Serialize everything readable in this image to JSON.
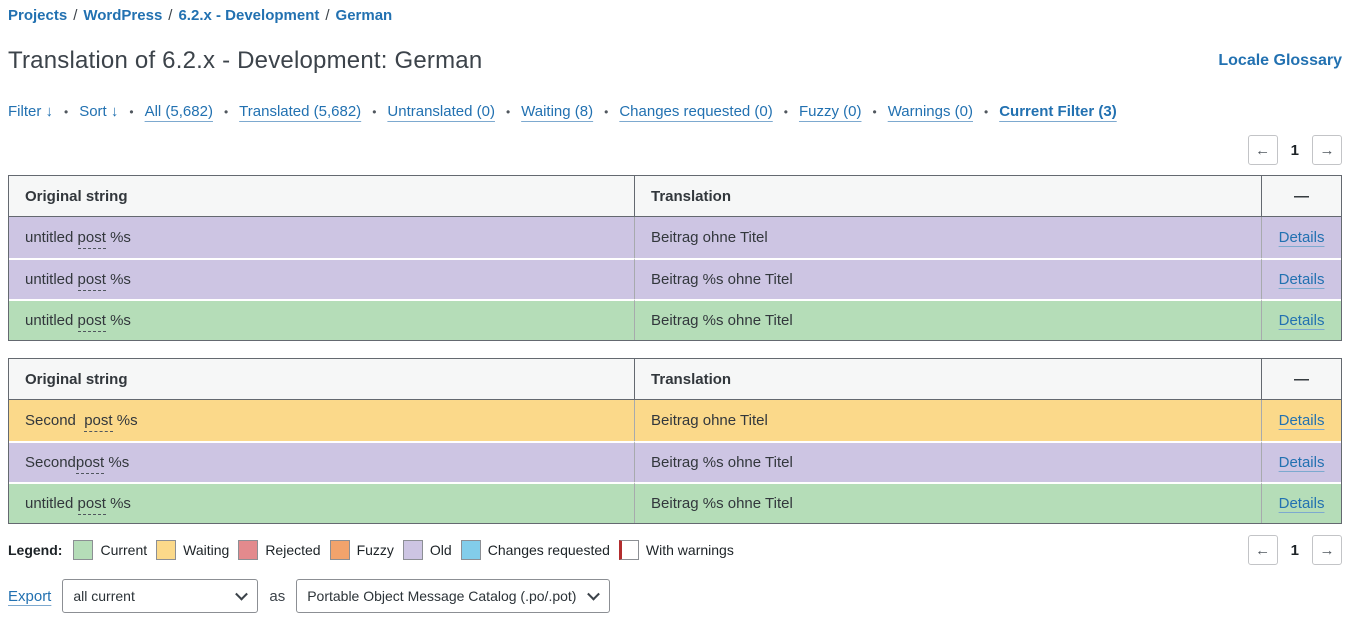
{
  "breadcrumb": {
    "separator": "/",
    "items": [
      "Projects",
      "WordPress",
      "6.2.x - Development",
      "German"
    ]
  },
  "header": {
    "title": "Translation of 6.2.x - Development: German",
    "locale_glossary": "Locale Glossary"
  },
  "filter_bar": {
    "filter": "Filter ↓",
    "sort": "Sort ↓",
    "bullet": "•",
    "links": [
      "All (5,682)",
      "Translated (5,682)",
      "Untranslated (0)",
      "Waiting (8)",
      "Changes requested (0)",
      "Fuzzy (0)",
      "Warnings (0)",
      "Current Filter (3)"
    ]
  },
  "pagination": {
    "prev": "←",
    "page": "1",
    "next": "→"
  },
  "table_headers": {
    "original": "Original string",
    "translation": "Translation",
    "actions": "—"
  },
  "tables": [
    {
      "rows": [
        {
          "prefix": "untitled ",
          "term": "post",
          "suffix": " %s",
          "translation": "Beitrag ohne Titel",
          "action": "Details",
          "status": "old"
        },
        {
          "prefix": "untitled ",
          "term": "post",
          "suffix": " %s",
          "translation": "Beitrag %s ohne Titel",
          "action": "Details",
          "status": "old"
        },
        {
          "prefix": "untitled ",
          "term": "post",
          "suffix": " %s",
          "translation": "Beitrag %s ohne Titel",
          "action": "Details",
          "status": "current"
        }
      ]
    },
    {
      "rows": [
        {
          "prefix": "Second  ",
          "term": "post",
          "suffix": " %s",
          "translation": "Beitrag ohne Titel",
          "action": "Details",
          "status": "waiting"
        },
        {
          "prefix": "Second",
          "term": "post",
          "suffix": " %s",
          "translation": "Beitrag %s ohne Titel",
          "action": "Details",
          "status": "old"
        },
        {
          "prefix": "untitled ",
          "term": "post",
          "suffix": " %s",
          "translation": "Beitrag %s ohne Titel",
          "action": "Details",
          "status": "current"
        }
      ]
    }
  ],
  "legend": {
    "label": "Legend:",
    "items": [
      {
        "label": "Current",
        "status": "current"
      },
      {
        "label": "Waiting",
        "status": "waiting"
      },
      {
        "label": "Rejected",
        "status": "rejected"
      },
      {
        "label": "Fuzzy",
        "status": "fuzzy"
      },
      {
        "label": "Old",
        "status": "old"
      },
      {
        "label": "Changes requested",
        "status": "changesrequested"
      },
      {
        "label": "With warnings",
        "status": "warnings"
      }
    ]
  },
  "status_colors": {
    "current": "#b5ddb8",
    "waiting": "#fbd98a",
    "rejected": "#e38a8d",
    "fuzzy": "#f2a36c",
    "old": "#cdc5e3",
    "changesrequested": "#82cdea",
    "warnings": "#ffffff"
  },
  "accent_colors": {
    "link": "#2271b1",
    "warning_border": "#b32d2e"
  },
  "export_bar": {
    "export": "Export",
    "scope_value": "all current",
    "as_label": "as",
    "format_value": "Portable Object Message Catalog (.po/.pot)"
  }
}
